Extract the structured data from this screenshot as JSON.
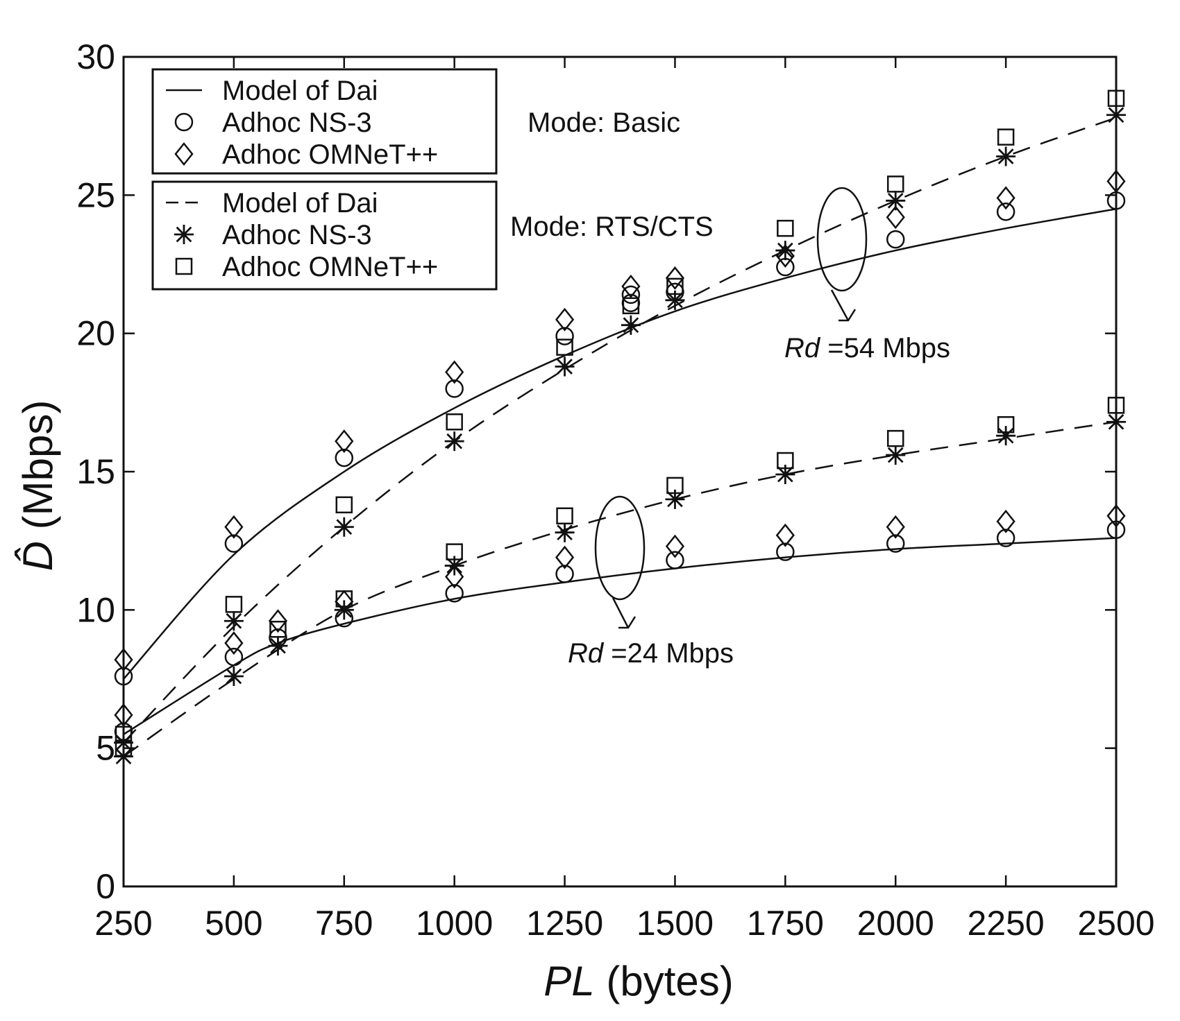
{
  "chart_data": {
    "type": "line",
    "xlabel": {
      "italic": "PL",
      "rest": " (bytes)"
    },
    "ylabel": {
      "symbol": "D̂",
      "rest": " (Mbps)"
    },
    "xlim": [
      250,
      2500
    ],
    "ylim": [
      0,
      30
    ],
    "xticks": [
      250,
      500,
      750,
      1000,
      1250,
      1500,
      1750,
      2000,
      2250,
      2500
    ],
    "yticks": [
      0,
      5,
      10,
      15,
      20,
      25,
      30
    ],
    "grid": false,
    "legend_groups": [
      {
        "entries": [
          {
            "marker": "solid-line",
            "label": "Model of Dai"
          },
          {
            "marker": "circle",
            "label": "Adhoc NS-3"
          },
          {
            "marker": "diamond",
            "label": "Adhoc OMNeT++"
          }
        ]
      },
      {
        "entries": [
          {
            "marker": "dashed-line",
            "label": "Model of Dai"
          },
          {
            "marker": "asterisk",
            "label": "Adhoc NS-3"
          },
          {
            "marker": "square",
            "label": "Adhoc OMNeT++"
          }
        ]
      }
    ],
    "annotations": {
      "mode_basic": "Mode: Basic",
      "mode_rts": "Mode: RTS/CTS",
      "rate54": {
        "italic": "Rd",
        "rest": " =54 Mbps"
      },
      "rate24": {
        "italic": "Rd",
        "rest": " =24 Mbps"
      }
    },
    "series": [
      {
        "group": "Basic",
        "rate": "54",
        "style": "solid",
        "x": [
          250,
          500,
          750,
          1000,
          1250,
          1500,
          1750,
          2000,
          2250,
          2500
        ],
        "y": [
          7.5,
          12.0,
          15.0,
          17.3,
          19.2,
          20.8,
          22.0,
          23.0,
          23.8,
          24.5
        ]
      },
      {
        "group": "Basic",
        "rate": "24",
        "style": "solid",
        "x": [
          250,
          500,
          600,
          750,
          1000,
          1250,
          1500,
          1750,
          2000,
          2250,
          2500
        ],
        "y": [
          5.5,
          8.0,
          8.8,
          9.5,
          10.4,
          11.0,
          11.5,
          11.9,
          12.2,
          12.4,
          12.6
        ]
      },
      {
        "group": "RTS/CTS",
        "rate": "54",
        "style": "dashed",
        "x": [
          250,
          500,
          750,
          1000,
          1250,
          1500,
          1750,
          2000,
          2250,
          2500
        ],
        "y": [
          5.2,
          9.4,
          13.0,
          16.1,
          18.7,
          21.0,
          23.0,
          24.8,
          26.4,
          27.8
        ]
      },
      {
        "group": "RTS/CTS",
        "rate": "24",
        "style": "dashed",
        "x": [
          250,
          500,
          750,
          1000,
          1250,
          1500,
          1750,
          2000,
          2250,
          2500
        ],
        "y": [
          4.7,
          7.5,
          10.0,
          11.6,
          12.9,
          14.0,
          14.9,
          15.6,
          16.2,
          16.8
        ]
      }
    ],
    "markers": [
      {
        "shape": "circle",
        "x": [
          250,
          250,
          500,
          500,
          600,
          750,
          750,
          1000,
          1000,
          1250,
          1250,
          1400,
          1400,
          1500,
          1500,
          1750,
          1750,
          2000,
          2000,
          2250,
          2250,
          2500,
          2500
        ],
        "y": [
          7.6,
          5.6,
          12.4,
          8.3,
          9.0,
          15.5,
          9.7,
          18.0,
          10.6,
          19.9,
          11.3,
          21.1,
          21.4,
          21.5,
          11.8,
          22.4,
          12.1,
          23.4,
          12.4,
          24.4,
          12.6,
          24.8,
          12.9
        ]
      },
      {
        "shape": "diamond",
        "x": [
          250,
          250,
          500,
          500,
          600,
          750,
          750,
          1000,
          1000,
          1250,
          1250,
          1400,
          1500,
          1500,
          1750,
          1750,
          2000,
          2000,
          2250,
          2250,
          2500,
          2500
        ],
        "y": [
          8.2,
          6.2,
          13.0,
          8.8,
          9.6,
          16.1,
          10.3,
          18.6,
          11.2,
          20.5,
          11.9,
          21.7,
          22.0,
          12.3,
          22.8,
          12.7,
          24.2,
          13.0,
          24.9,
          13.2,
          25.5,
          13.4
        ]
      },
      {
        "shape": "asterisk",
        "x": [
          250,
          250,
          500,
          500,
          600,
          750,
          750,
          1000,
          1000,
          1250,
          1250,
          1400,
          1500,
          1500,
          1750,
          1750,
          2000,
          2000,
          2250,
          2250,
          2500,
          2500
        ],
        "y": [
          5.2,
          4.7,
          9.6,
          7.6,
          8.7,
          13.0,
          10.0,
          16.1,
          11.6,
          18.8,
          12.8,
          20.3,
          21.2,
          14.0,
          23.0,
          14.9,
          24.8,
          15.6,
          26.4,
          16.3,
          27.9,
          16.8
        ]
      },
      {
        "shape": "square",
        "x": [
          250,
          250,
          500,
          600,
          750,
          750,
          1000,
          1000,
          1250,
          1250,
          1400,
          1500,
          1500,
          1750,
          1750,
          2000,
          2000,
          2250,
          2250,
          2500,
          2500
        ],
        "y": [
          5.5,
          5.0,
          10.2,
          9.3,
          13.8,
          10.4,
          16.8,
          12.1,
          19.5,
          13.4,
          21.0,
          21.7,
          14.5,
          23.8,
          15.4,
          25.4,
          16.2,
          27.1,
          16.7,
          28.5,
          17.4
        ]
      }
    ]
  }
}
